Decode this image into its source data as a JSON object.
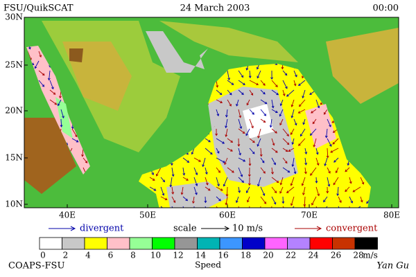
{
  "header": {
    "left": "FSU/QuikSCAT",
    "center": "24 March 2003",
    "right": "00:00"
  },
  "axes": {
    "lat_labels": [
      "30N",
      "25N",
      "20N",
      "15N",
      "10N"
    ],
    "lon_labels": [
      "40E",
      "50E",
      "60E",
      "70E",
      "80E"
    ]
  },
  "legend": {
    "divergent": "divergent",
    "scale": "scale",
    "scale_value": "10 m/s",
    "convergent": "convergent"
  },
  "colorbar": {
    "ticks": [
      "0",
      "2",
      "4",
      "6",
      "8",
      "10",
      "12",
      "14",
      "16",
      "18",
      "20",
      "22",
      "24",
      "26",
      "28"
    ],
    "unit": "m/s",
    "title": "Speed",
    "colors": [
      "#ffffff",
      "#c8c8c8",
      "#ffff00",
      "#ffc0c8",
      "#96ff96",
      "#00ff00",
      "#969696",
      "#00b4b4",
      "#3c96ff",
      "#0000c8",
      "#ff64ff",
      "#b482ff",
      "#ff0000",
      "#c83200",
      "#000000"
    ]
  },
  "footer": {
    "left": "COAPS-FSU",
    "right": "Yan Gu"
  }
}
